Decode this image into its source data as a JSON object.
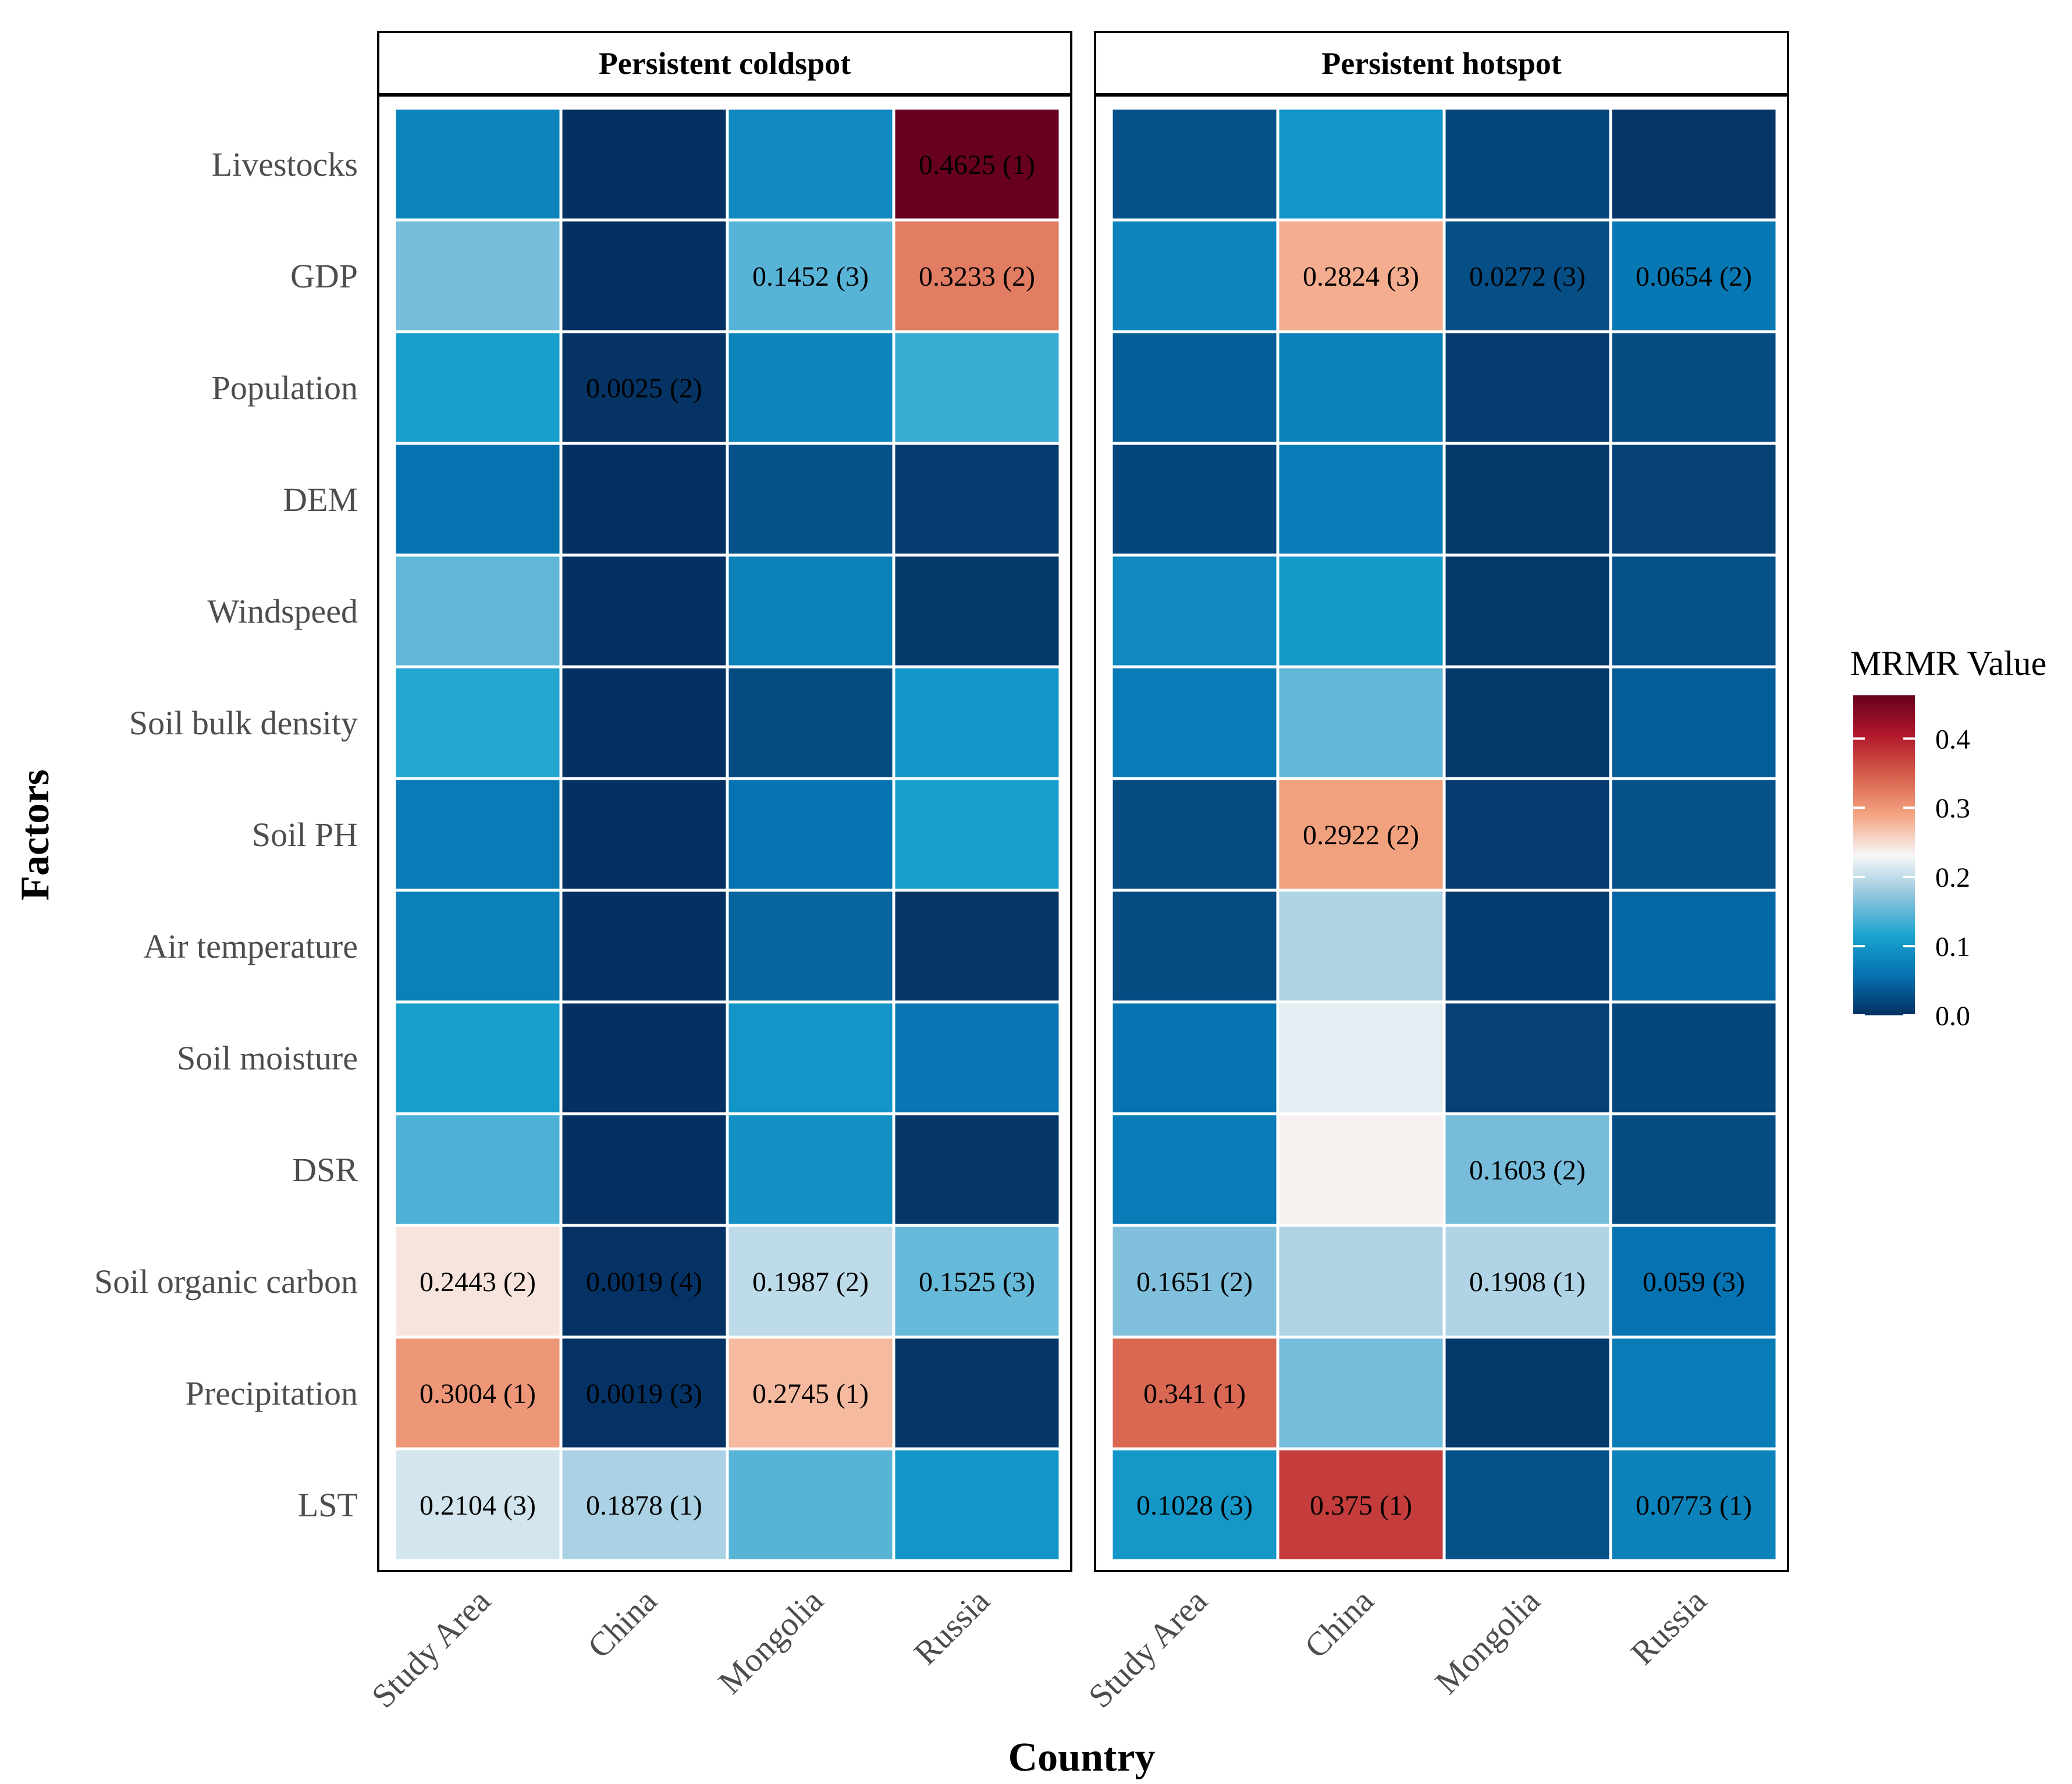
{
  "chart_data": {
    "type": "heatmap",
    "xlabel": "Country",
    "ylabel": "Factors",
    "factors": [
      "Livestocks",
      "GDP",
      "Population",
      "DEM",
      "Windspeed",
      "Soil bulk density",
      "Soil PH",
      "Air temperature",
      "Soil moisture",
      "DSR",
      "Soil organic carbon",
      "Precipitation",
      "LST"
    ],
    "countries": [
      "Study Area",
      "China",
      "Mongolia",
      "Russia"
    ],
    "legend": {
      "title": "MRMR Value",
      "min": 0,
      "max": 0.4625,
      "ticks": [
        0.0,
        0.1,
        0.2,
        0.3,
        0.4
      ],
      "tick_labels": [
        "0.0",
        "0.1",
        "0.2",
        "0.3",
        "0.4"
      ],
      "placement": "right",
      "colors": [
        "#053061",
        "#0571b0",
        "#1aa3cf",
        "#92c5de",
        "#f7f7f7",
        "#f4a582",
        "#d6604d",
        "#b2182b",
        "#67001f"
      ]
    },
    "panels": [
      {
        "title": "Persistent coldspot",
        "values": [
          [
            0.08,
            0.0,
            0.085,
            0.4625
          ],
          [
            0.16,
            0.0,
            0.1452,
            0.3233
          ],
          [
            0.11,
            0.0025,
            0.08,
            0.13
          ],
          [
            0.06,
            0.0,
            0.03,
            0.01
          ],
          [
            0.15,
            0.0,
            0.075,
            0.008
          ],
          [
            0.12,
            0.0,
            0.025,
            0.1
          ],
          [
            0.07,
            0.0,
            0.06,
            0.11
          ],
          [
            0.075,
            0.0,
            0.045,
            0.005
          ],
          [
            0.11,
            0.0,
            0.1,
            0.065
          ],
          [
            0.14,
            0.0,
            0.095,
            0.006
          ],
          [
            0.2443,
            0.0019,
            0.1987,
            0.1525
          ],
          [
            0.3004,
            0.0019,
            0.2745,
            0.005
          ],
          [
            0.2104,
            0.1878,
            0.145,
            0.1
          ]
        ],
        "labels": [
          [
            "",
            "",
            "",
            "0.4625 (1)"
          ],
          [
            "",
            "",
            "0.1452 (3)",
            "0.3233 (2)"
          ],
          [
            "",
            "0.0025 (2)",
            "",
            ""
          ],
          [
            "",
            "",
            "",
            ""
          ],
          [
            "",
            "",
            "",
            ""
          ],
          [
            "",
            "",
            "",
            ""
          ],
          [
            "",
            "",
            "",
            ""
          ],
          [
            "",
            "",
            "",
            ""
          ],
          [
            "",
            "",
            "",
            ""
          ],
          [
            "",
            "",
            "",
            ""
          ],
          [
            "0.2443 (2)",
            "0.0019 (4)",
            "0.1987 (2)",
            "0.1525 (3)"
          ],
          [
            "0.3004 (1)",
            "0.0019 (3)",
            "0.2745 (1)",
            ""
          ],
          [
            "0.2104 (3)",
            "0.1878 (1)",
            "",
            ""
          ]
        ]
      },
      {
        "title": "Persistent hotspot",
        "values": [
          [
            0.03,
            0.1,
            0.02,
            0.005
          ],
          [
            0.08,
            0.2824,
            0.0272,
            0.0654
          ],
          [
            0.04,
            0.075,
            0.01,
            0.025
          ],
          [
            0.02,
            0.07,
            0.008,
            0.015
          ],
          [
            0.085,
            0.105,
            0.008,
            0.03
          ],
          [
            0.07,
            0.15,
            0.008,
            0.04
          ],
          [
            0.025,
            0.2922,
            0.01,
            0.03
          ],
          [
            0.025,
            0.19,
            0.012,
            0.05
          ],
          [
            0.06,
            0.22,
            0.015,
            0.02
          ],
          [
            0.07,
            0.235,
            0.1603,
            0.025
          ],
          [
            0.1651,
            0.19,
            0.1908,
            0.059
          ],
          [
            0.341,
            0.16,
            0.008,
            0.07
          ],
          [
            0.1028,
            0.375,
            0.03,
            0.0773
          ]
        ],
        "labels": [
          [
            "",
            "",
            "",
            ""
          ],
          [
            "",
            "0.2824 (3)",
            "0.0272 (3)",
            "0.0654 (2)"
          ],
          [
            "",
            "",
            "",
            ""
          ],
          [
            "",
            "",
            "",
            ""
          ],
          [
            "",
            "",
            "",
            ""
          ],
          [
            "",
            "",
            "",
            ""
          ],
          [
            "",
            "0.2922 (2)",
            "",
            ""
          ],
          [
            "",
            "",
            "",
            ""
          ],
          [
            "",
            "",
            "",
            ""
          ],
          [
            "",
            "",
            "0.1603 (2)",
            ""
          ],
          [
            "0.1651 (2)",
            "",
            "0.1908 (1)",
            "0.059 (3)"
          ],
          [
            "0.341 (1)",
            "",
            "",
            ""
          ],
          [
            "0.1028 (3)",
            "0.375 (1)",
            "",
            "0.0773 (1)"
          ]
        ]
      }
    ]
  }
}
